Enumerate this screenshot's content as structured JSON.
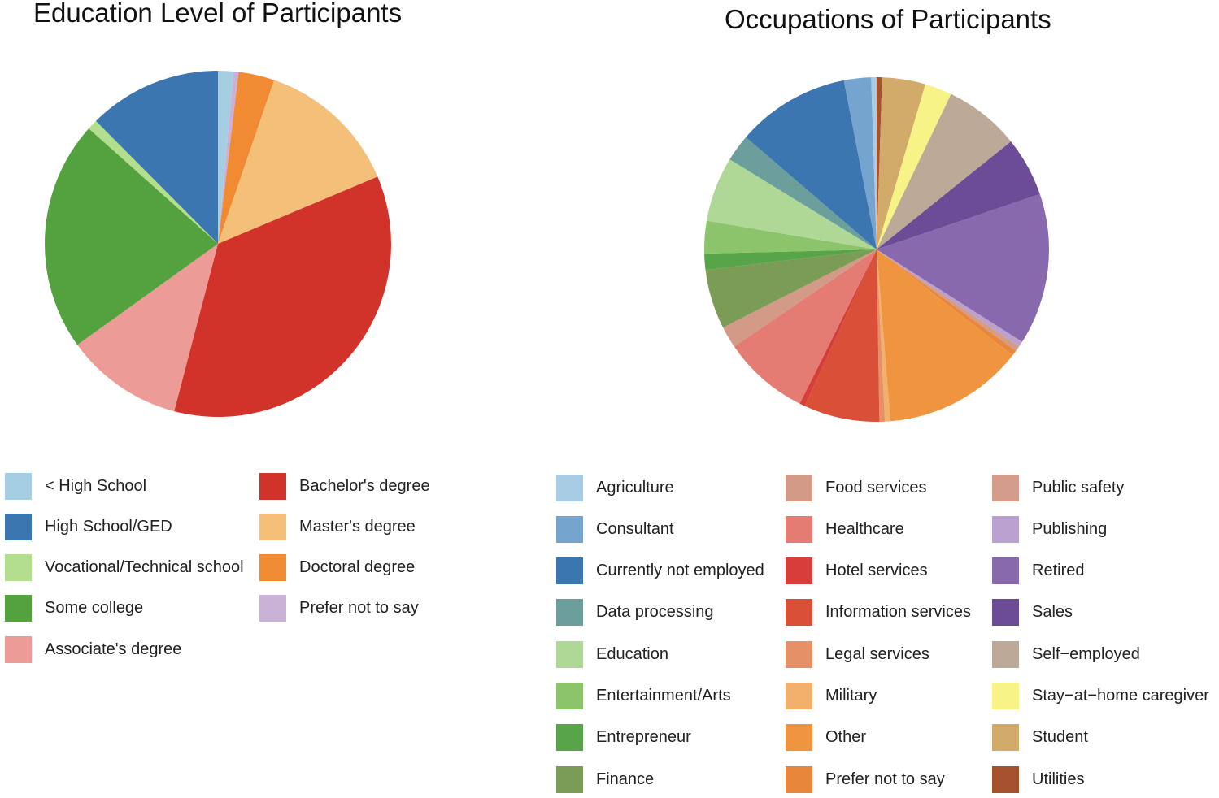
{
  "chart_data": [
    {
      "type": "pie",
      "title": "Education Level of Participants",
      "start_angle_deg": 0,
      "direction": "clockwise",
      "slices": [
        {
          "label": "< High School",
          "value": 1.5,
          "color": "#a6cee3"
        },
        {
          "label": "Prefer not to say",
          "value": 0.5,
          "color": "#cab2d6"
        },
        {
          "label": "Doctoral degree",
          "value": 3.5,
          "color": "#f08a33"
        },
        {
          "label": "Master's degree",
          "value": 14,
          "color": "#f4bf78"
        },
        {
          "label": "Bachelor's degree",
          "value": 37,
          "color": "#d1332b"
        },
        {
          "label": "Associate's degree",
          "value": 11.5,
          "color": "#ec9b96"
        },
        {
          "label": "Some college",
          "value": 22.5,
          "color": "#54a23f"
        },
        {
          "label": "Vocational/Technical school",
          "value": 1,
          "color": "#b3de8d"
        },
        {
          "label": "High School/GED",
          "value": 13,
          "color": "#3b76b0"
        }
      ],
      "legend": [
        {
          "label": "< High School",
          "color": "#a6cee3"
        },
        {
          "label": "High School/GED",
          "color": "#3b76b0"
        },
        {
          "label": "Vocational/Technical school",
          "color": "#b3de8d"
        },
        {
          "label": "Some college",
          "color": "#54a23f"
        },
        {
          "label": "Associate's degree",
          "color": "#ec9b96"
        },
        {
          "label": "Bachelor's degree",
          "color": "#d1332b"
        },
        {
          "label": "Master's degree",
          "color": "#f4bf78"
        },
        {
          "label": "Doctoral degree",
          "color": "#f08a33"
        },
        {
          "label": "Prefer not to say",
          "color": "#cab2d6"
        }
      ],
      "legend_placement": "bottom"
    },
    {
      "type": "pie",
      "title": "Occupations of Participants",
      "start_angle_deg": 0,
      "direction": "clockwise",
      "slices": [
        {
          "label": "Utilities",
          "value": 0.5,
          "color": "#a6522c"
        },
        {
          "label": "Student",
          "value": 4,
          "color": "#d2aa6a"
        },
        {
          "label": "Stay−at−home caregiver",
          "value": 2.5,
          "color": "#f8f387"
        },
        {
          "label": "Self−employed",
          "value": 7,
          "color": "#bda997"
        },
        {
          "label": "Sales",
          "value": 5.5,
          "color": "#6c4c96"
        },
        {
          "label": "Retired",
          "value": 14,
          "color": "#8869ad"
        },
        {
          "label": "Publishing",
          "value": 0.5,
          "color": "#bba1cf"
        },
        {
          "label": "Public safety",
          "value": 0.5,
          "color": "#d49c8a"
        },
        {
          "label": "Prefer not to say",
          "value": 0.5,
          "color": "#e8873b"
        },
        {
          "label": "Other",
          "value": 13,
          "color": "#ef953f"
        },
        {
          "label": "Military",
          "value": 0.5,
          "color": "#f1b06c"
        },
        {
          "label": "Legal services",
          "value": 0.5,
          "color": "#e69068"
        },
        {
          "label": "Information services",
          "value": 7,
          "color": "#d94f37"
        },
        {
          "label": "Hotel services",
          "value": 0.5,
          "color": "#d73e3a"
        },
        {
          "label": "Healthcare",
          "value": 8,
          "color": "#e47c74"
        },
        {
          "label": "Food services",
          "value": 2,
          "color": "#d39b87"
        },
        {
          "label": "Finance",
          "value": 5.5,
          "color": "#7b9c57"
        },
        {
          "label": "Entrepreneur",
          "value": 1.5,
          "color": "#58a448"
        },
        {
          "label": "Entertainment/Arts",
          "value": 3,
          "color": "#8cc46b"
        },
        {
          "label": "Education",
          "value": 6,
          "color": "#afd796"
        },
        {
          "label": "Data processing",
          "value": 2.5,
          "color": "#6c9f9c"
        },
        {
          "label": "Currently not employed",
          "value": 10.5,
          "color": "#3b76b0"
        },
        {
          "label": "Consultant",
          "value": 2.5,
          "color": "#75a4cf"
        },
        {
          "label": "Agriculture",
          "value": 0.5,
          "color": "#a8cce3"
        }
      ],
      "legend": [
        {
          "label": "Agriculture",
          "color": "#a8cce3"
        },
        {
          "label": "Consultant",
          "color": "#75a4cf"
        },
        {
          "label": "Currently not employed",
          "color": "#3b76b0"
        },
        {
          "label": "Data processing",
          "color": "#6c9f9c"
        },
        {
          "label": "Education",
          "color": "#afd796"
        },
        {
          "label": "Entertainment/Arts",
          "color": "#8cc46b"
        },
        {
          "label": "Entrepreneur",
          "color": "#58a448"
        },
        {
          "label": "Finance",
          "color": "#7b9c57"
        },
        {
          "label": "Food services",
          "color": "#d39b87"
        },
        {
          "label": "Healthcare",
          "color": "#e47c74"
        },
        {
          "label": "Hotel services",
          "color": "#d73e3a"
        },
        {
          "label": "Information services",
          "color": "#d94f37"
        },
        {
          "label": "Legal services",
          "color": "#e69068"
        },
        {
          "label": "Military",
          "color": "#f1b06c"
        },
        {
          "label": "Other",
          "color": "#ef953f"
        },
        {
          "label": "Prefer not to say",
          "color": "#e8873b"
        },
        {
          "label": "Public safety",
          "color": "#d49c8a"
        },
        {
          "label": "Publishing",
          "color": "#bba1cf"
        },
        {
          "label": "Retired",
          "color": "#8869ad"
        },
        {
          "label": "Sales",
          "color": "#6c4c96"
        },
        {
          "label": "Self−employed",
          "color": "#bda997"
        },
        {
          "label": "Stay−at−home caregiver",
          "color": "#f8f387"
        },
        {
          "label": "Student",
          "color": "#d2aa6a"
        },
        {
          "label": "Utilities",
          "color": "#a6522c"
        }
      ],
      "legend_placement": "bottom"
    }
  ]
}
